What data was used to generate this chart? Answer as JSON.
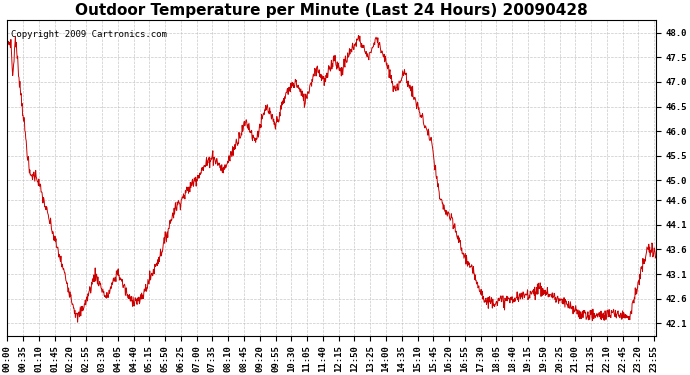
{
  "title": "Outdoor Temperature per Minute (Last 24 Hours) 20090428",
  "copyright_text": "Copyright 2009 Cartronics.com",
  "line_color": "#cc0000",
  "bg_color": "#ffffff",
  "grid_color": "#bbbbbb",
  "yticks": [
    42.1,
    42.6,
    43.1,
    43.6,
    44.1,
    44.6,
    45.0,
    45.5,
    46.0,
    46.5,
    47.0,
    47.5,
    48.0
  ],
  "ylim": [
    41.85,
    48.25
  ],
  "total_minutes": 1440,
  "xtick_interval": 35,
  "x_tick_labels": [
    "00:00",
    "00:35",
    "01:10",
    "01:45",
    "02:20",
    "02:55",
    "03:30",
    "04:05",
    "04:40",
    "05:15",
    "05:50",
    "06:25",
    "07:00",
    "07:35",
    "08:10",
    "08:45",
    "09:20",
    "09:55",
    "10:30",
    "11:05",
    "11:40",
    "12:15",
    "12:50",
    "13:25",
    "14:00",
    "14:35",
    "15:10",
    "15:45",
    "16:20",
    "16:55",
    "17:30",
    "18:05",
    "18:40",
    "19:15",
    "19:50",
    "20:25",
    "21:00",
    "21:35",
    "22:10",
    "22:45",
    "23:20",
    "23:55"
  ],
  "title_fontsize": 11,
  "tick_fontsize": 6.5,
  "copyright_fontsize": 6.5,
  "figsize": [
    6.9,
    3.75
  ],
  "dpi": 100
}
